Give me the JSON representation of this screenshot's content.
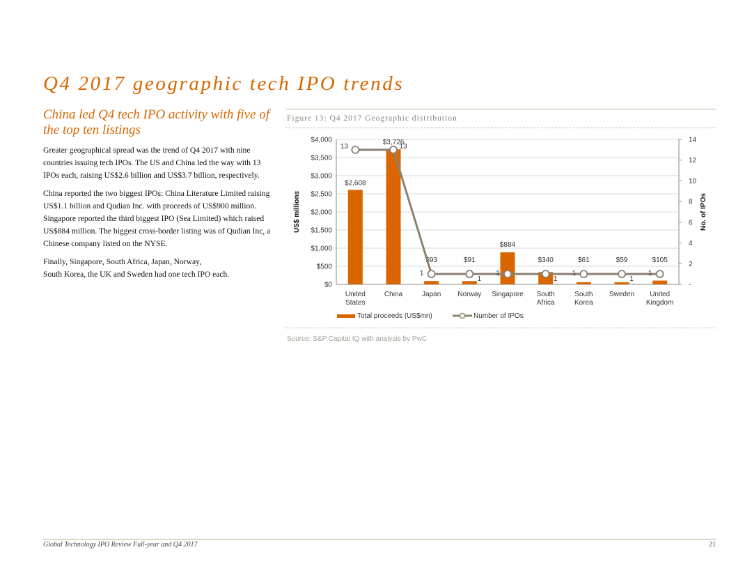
{
  "page": {
    "title": "Q4 2017 geographic tech IPO trends",
    "subtitle": "China led Q4 tech IPO activity with five of the top ten listings",
    "paragraphs": [
      "Greater geographical spread was the trend of Q4 2017 with nine countries issuing tech IPOs. The US and China led the way with 13 IPOs each, raising US$2.6 billion and US$3.7 billion, respectively.",
      "China reported the two biggest IPOs: China Literature Limited raising US$1.1 billion and Qudian Inc. with proceeds of US$900 million. Singapore reported the third biggest IPO (Sea Limited) which raised US$884 million. The biggest cross-border listing was of Qudian Inc, a Chinese company listed on the NYSE.",
      "Finally, Singapore, South Africa, Japan, Norway,",
      "South Korea, the UK and Sweden had one tech IPO each."
    ],
    "figure_title": "Figure 13: Q4 2017 Geographic distribution",
    "source": "Source: S&P Capital IQ with analysis by PwC",
    "footer": "Global Technology IPO Review Full-year and Q4 2017",
    "page_number": "21"
  },
  "colors": {
    "accent": "#d96600",
    "bar": "#d96600",
    "line": "#8b8170",
    "grid": "#d9d9d9",
    "axis": "#888888",
    "text": "#333333"
  },
  "chart_data": {
    "type": "bar",
    "title": "Figure 13: Q4 2017 Geographic distribution",
    "categories": [
      [
        "United",
        "States"
      ],
      [
        "China"
      ],
      [
        "Japan"
      ],
      [
        "Norway"
      ],
      [
        "Singapore"
      ],
      [
        "South",
        "Africa"
      ],
      [
        "South",
        "Korea"
      ],
      [
        "Sweden"
      ],
      [
        "United",
        "Kingdom"
      ]
    ],
    "series": [
      {
        "name": "Total proceeds (US$mn)",
        "type": "bar",
        "axis": "left",
        "values": [
          2608,
          3726,
          93,
          91,
          884,
          340,
          61,
          59,
          105
        ],
        "labels": [
          "$2,608",
          "$3,726",
          "$93",
          "$91",
          "$884",
          "$340",
          "$61",
          "$59",
          "$105"
        ]
      },
      {
        "name": "Number of IPOs",
        "type": "line",
        "axis": "right",
        "values": [
          13,
          13,
          1,
          1,
          1,
          1,
          1,
          1,
          1
        ],
        "labels": [
          "13",
          "13",
          "1",
          "1",
          "1",
          "1",
          "1",
          "1",
          "1"
        ]
      }
    ],
    "ylabel": "US$ millions",
    "y2label": "No. of IPOs",
    "ylim": [
      0,
      4000
    ],
    "y2lim": [
      0,
      14
    ],
    "yticks": [
      0,
      500,
      1000,
      1500,
      2000,
      2500,
      3000,
      3500,
      4000
    ],
    "ytick_labels": [
      "$0",
      "$500",
      "$1,000",
      "$1,500",
      "$2,000",
      "$2,500",
      "$3,000",
      "$3,500",
      "$4,000"
    ],
    "y2ticks": [
      0,
      2,
      4,
      6,
      8,
      10,
      12,
      14
    ],
    "y2tick_labels": [
      "-",
      "2",
      "4",
      "6",
      "8",
      "10",
      "12",
      "14"
    ],
    "grid": true,
    "legend": "bottom"
  }
}
